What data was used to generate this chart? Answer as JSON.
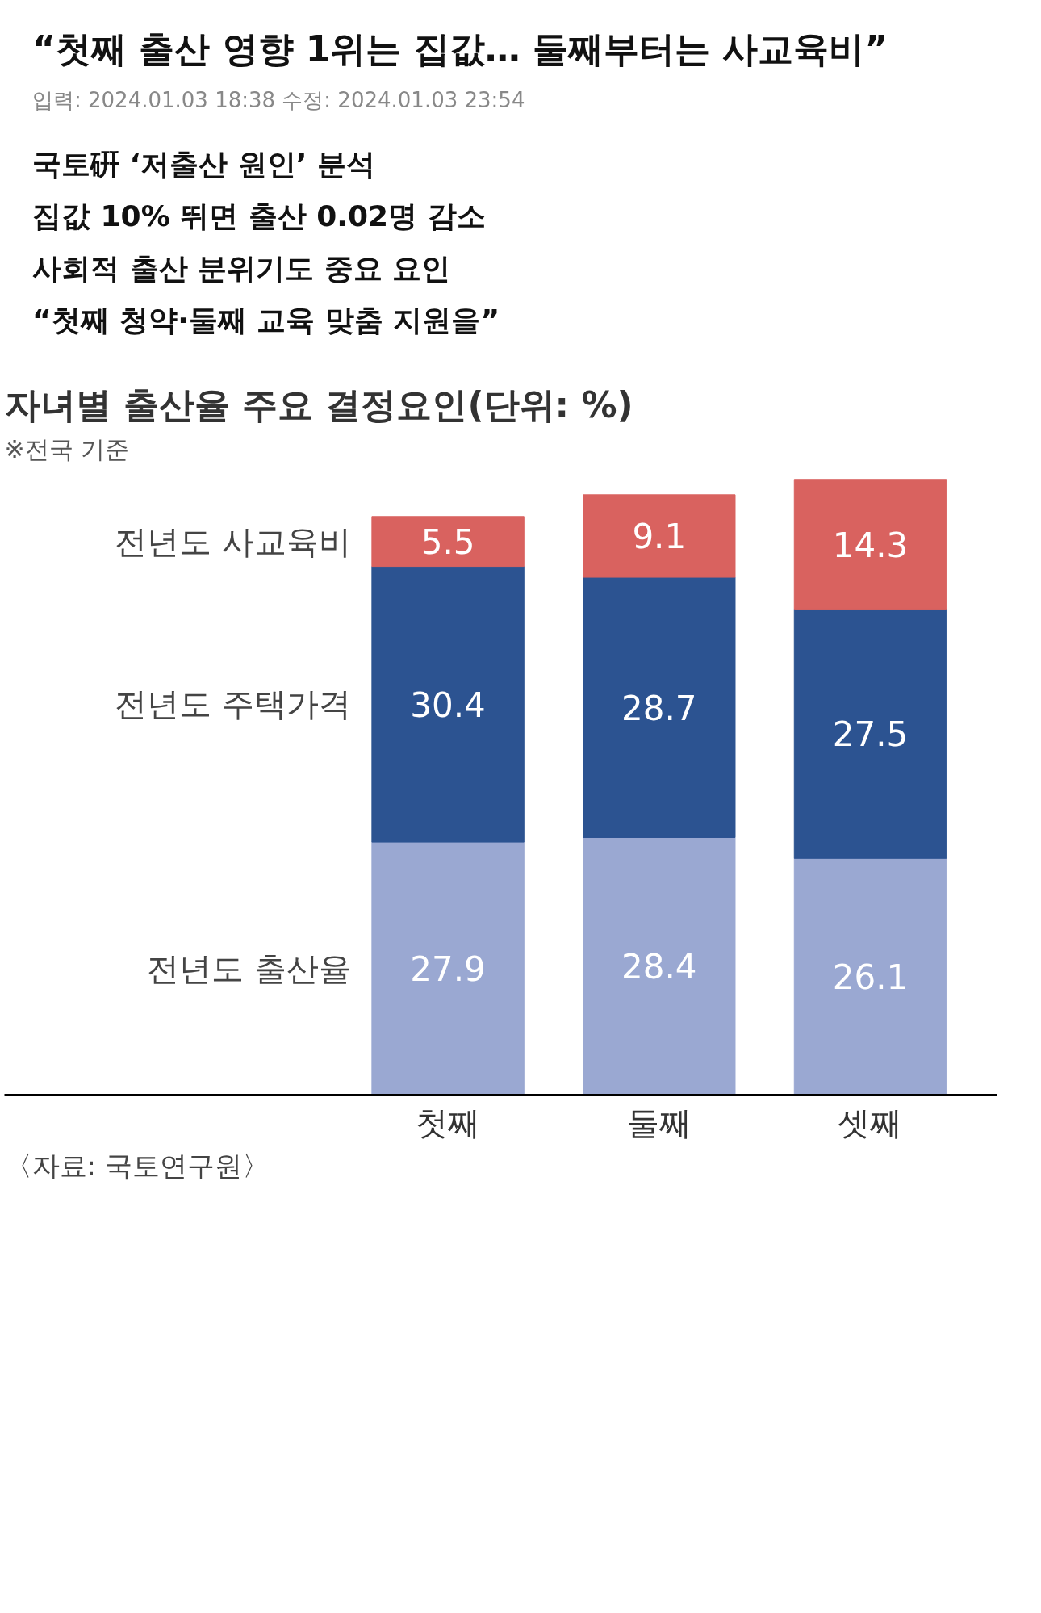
{
  "chart_data": {
    "type": "bar",
    "title": "자녀별 출산율 주요 결정요인(단위: %)",
    "subtitle": "※전국 기준",
    "annotations": [
      "“첫째 출산 영향 1위는 집값… 둘째부터는 사교육비”",
      "입력: 2024.01.03 18:38    수정: 2024.01.03 23:54",
      "국토硏 ‘저출산 원인’ 분석",
      "집값 10% 뛰면 출산 0.02명 감소",
      "사회적 출산 분위기도 중요 요인",
      "“첫째 청약·둘째 교육 맞춤 지원을”",
      "〈자료: 국토연구원〉"
    ],
    "categories": [
      "첫째",
      "둘째",
      "셋째"
    ],
    "stacked": true,
    "data_labels": true,
    "legend": false,
    "series": [
      {
        "name": "전년도 출산율",
        "color": "#9aa8d2",
        "values": [
          27.9,
          28.4,
          26.1
        ]
      },
      {
        "name": "전년도 주택가격",
        "color": "#2c5391",
        "values": [
          30.4,
          28.7,
          27.5
        ]
      },
      {
        "name": "전년도 사교육비",
        "color": "#d9625f",
        "values": [
          5.5,
          9.1,
          14.3
        ]
      }
    ]
  }
}
